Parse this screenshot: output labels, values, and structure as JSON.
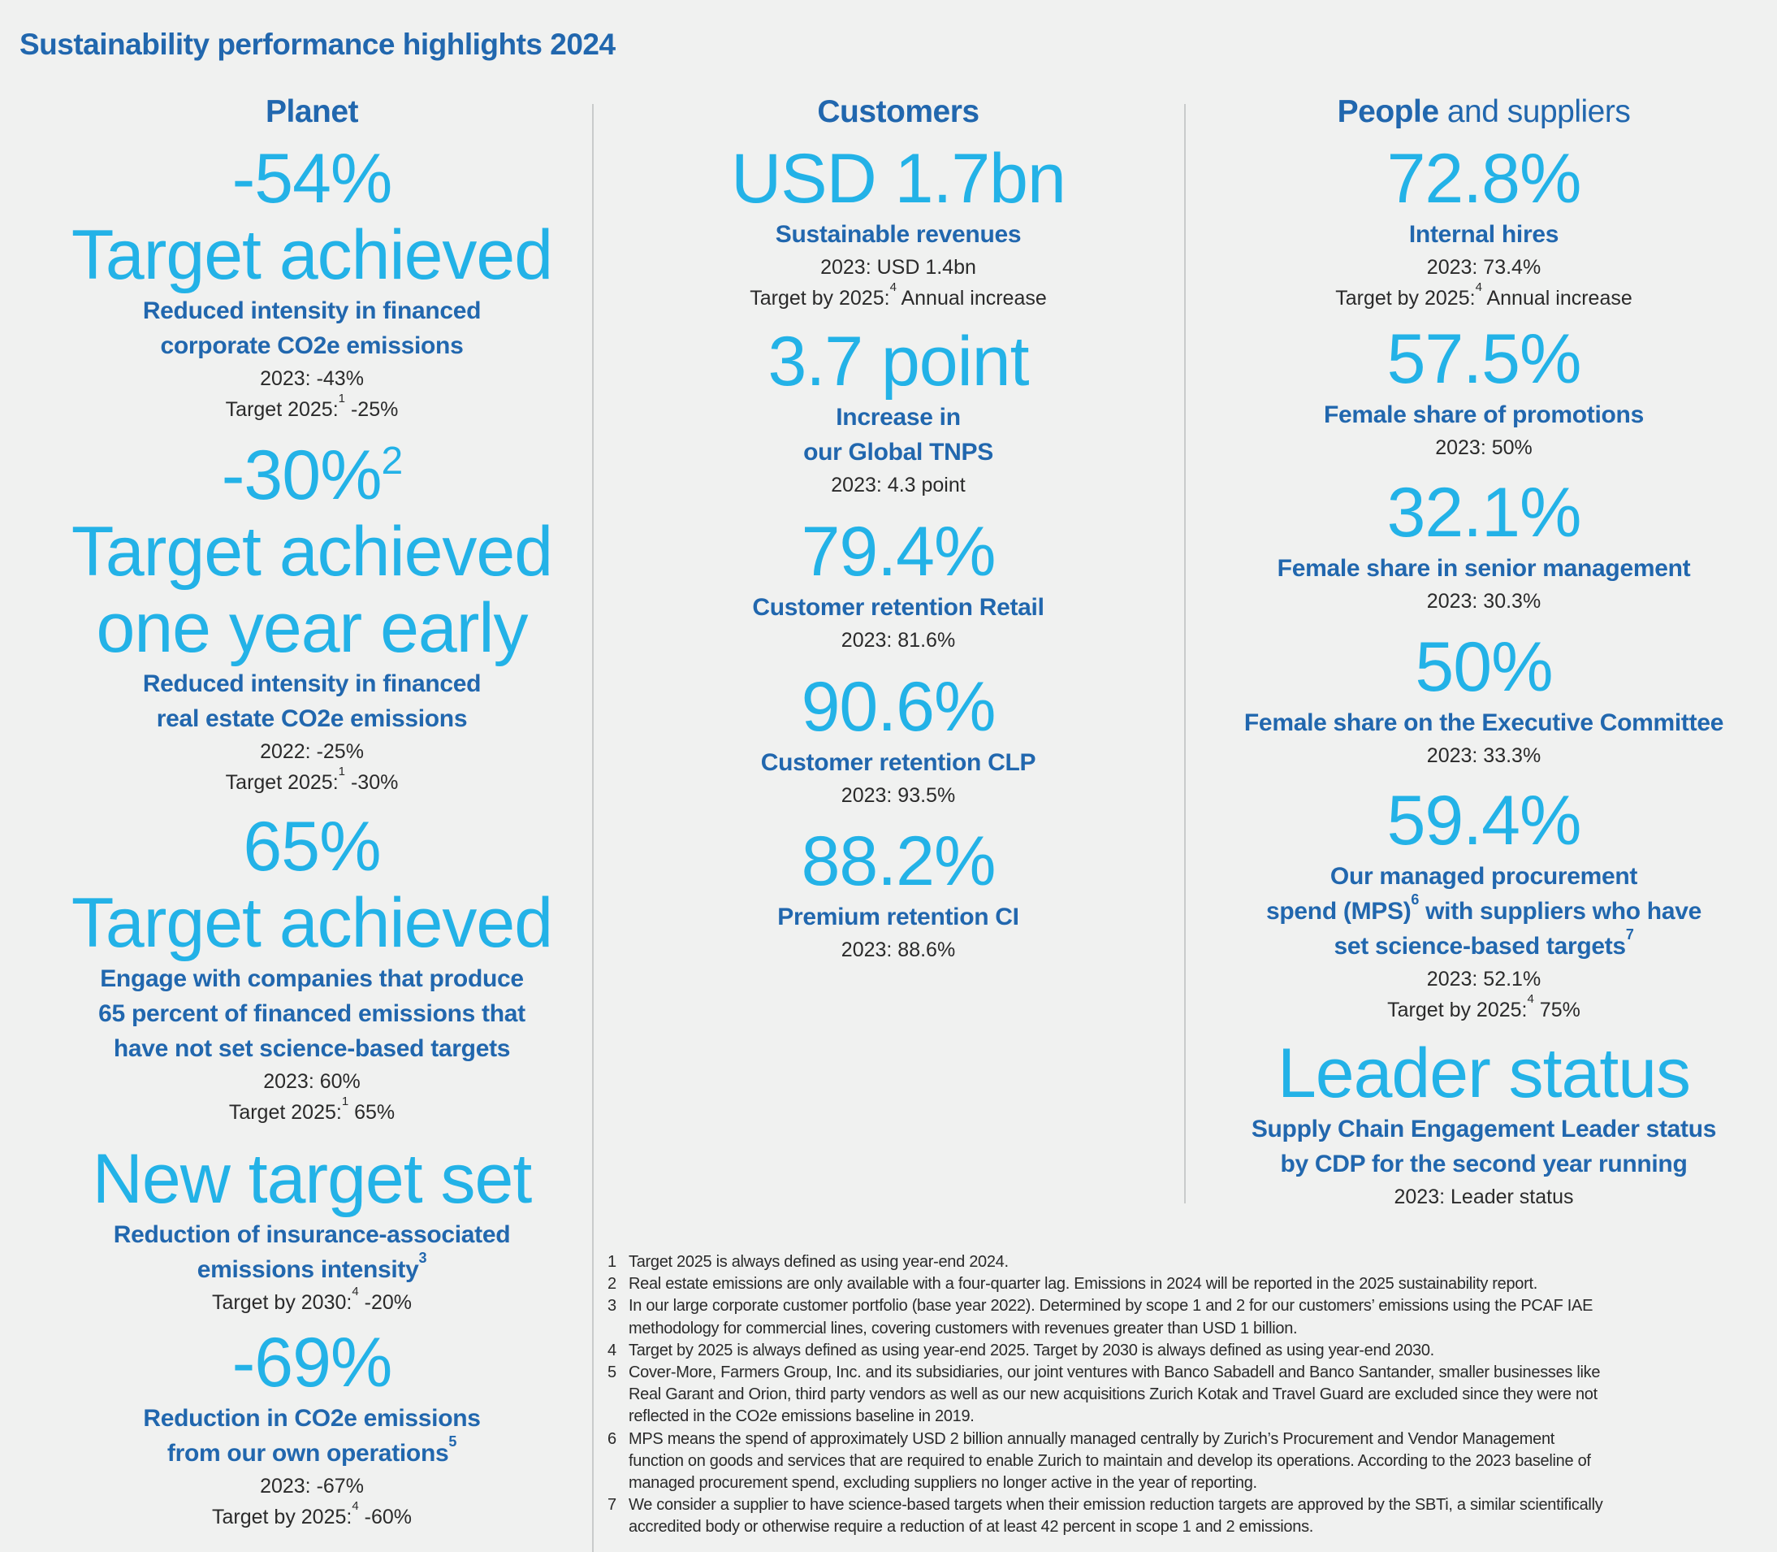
{
  "title": "Sustainability performance highlights 2024",
  "colors": {
    "dark_blue": "#2167ae",
    "light_blue": "#23b2e7",
    "background": "#f0f1f0",
    "text": "#2a2a2a"
  },
  "columns": [
    {
      "header_bold": "Planet",
      "header_rest": "",
      "items": [
        {
          "value": "-54%",
          "value_sup": "",
          "big": [
            "Target achieved"
          ],
          "label": [
            {
              "text": "Reduced intensity in financed"
            },
            {
              "text": "corporate CO2e emissions"
            }
          ],
          "details": [
            {
              "text": "2023: -43%"
            },
            {
              "text": "Target 2025:",
              "sup": "1",
              "after": " -25%"
            }
          ]
        },
        {
          "value": "-30%",
          "value_sup": "2",
          "big": [
            "Target achieved",
            "one year early"
          ],
          "label": [
            {
              "text": "Reduced intensity in financed"
            },
            {
              "text": "real estate CO2e emissions"
            }
          ],
          "details": [
            {
              "text": "2022: -25%"
            },
            {
              "text": "Target 2025:",
              "sup": "1",
              "after": " -30%"
            }
          ]
        },
        {
          "value": "65%",
          "value_sup": "",
          "big": [
            "Target achieved"
          ],
          "label": [
            {
              "text": "Engage with companies that produce"
            },
            {
              "text": "65 percent of financed emissions that"
            },
            {
              "text": "have not set science-based targets"
            }
          ],
          "details": [
            {
              "text": "2023: 60%"
            },
            {
              "text": "Target 2025:",
              "sup": "1",
              "after": " 65%"
            }
          ]
        },
        {
          "value": "",
          "value_sup": "",
          "big": [
            "New target set"
          ],
          "label": [
            {
              "text": "Reduction of insurance-associated"
            },
            {
              "text": "emissions intensity",
              "sup": "3"
            }
          ],
          "details": [
            {
              "text": "Target by 2030:",
              "sup": "4",
              "after": " -20%"
            }
          ]
        },
        {
          "value": "-69%",
          "value_sup": "",
          "big": [],
          "label": [
            {
              "text": "Reduction in CO2e emissions"
            },
            {
              "text": "from our own operations",
              "sup": "5"
            }
          ],
          "details": [
            {
              "text": "2023: -67%"
            },
            {
              "text": "Target by 2025:",
              "sup": "4",
              "after": " -60%"
            }
          ]
        }
      ]
    },
    {
      "header_bold": "Customers",
      "header_rest": "",
      "items": [
        {
          "value": "USD 1.7bn",
          "value_sup": "",
          "big": [],
          "label": [
            {
              "text": "Sustainable revenues"
            }
          ],
          "details": [
            {
              "text": "2023: USD 1.4bn"
            },
            {
              "text": "Target by 2025:",
              "sup": "4",
              "after": " Annual increase"
            }
          ]
        },
        {
          "value": "3.7 point",
          "value_sup": "",
          "big": [],
          "label": [
            {
              "text": "Increase in"
            },
            {
              "text": "our Global TNPS"
            }
          ],
          "details": [
            {
              "text": "2023: 4.3 point"
            }
          ]
        },
        {
          "value": "79.4%",
          "value_sup": "",
          "big": [],
          "label": [
            {
              "text": "Customer retention Retail"
            }
          ],
          "details": [
            {
              "text": "2023: 81.6%"
            }
          ]
        },
        {
          "value": "90.6%",
          "value_sup": "",
          "big": [],
          "label": [
            {
              "text": "Customer retention CLP"
            }
          ],
          "details": [
            {
              "text": "2023: 93.5%"
            }
          ]
        },
        {
          "value": "88.2%",
          "value_sup": "",
          "big": [],
          "label": [
            {
              "text": "Premium retention CI"
            }
          ],
          "details": [
            {
              "text": "2023: 88.6%"
            }
          ]
        }
      ]
    },
    {
      "header_bold": "People",
      "header_rest": " and suppliers",
      "items": [
        {
          "value": "72.8%",
          "value_sup": "",
          "big": [],
          "label": [
            {
              "text": "Internal hires"
            }
          ],
          "details": [
            {
              "text": "2023: 73.4%"
            },
            {
              "text": "Target by 2025:",
              "sup": "4",
              "after": " Annual increase"
            }
          ]
        },
        {
          "value": "57.5%",
          "value_sup": "",
          "big": [],
          "label": [
            {
              "text": "Female share of promotions"
            }
          ],
          "details": [
            {
              "text": "2023: 50%"
            }
          ]
        },
        {
          "value": "32.1%",
          "value_sup": "",
          "big": [],
          "label": [
            {
              "text": "Female share in senior management"
            }
          ],
          "details": [
            {
              "text": "2023: 30.3%"
            }
          ]
        },
        {
          "value": "50%",
          "value_sup": "",
          "big": [],
          "label": [
            {
              "text": "Female share on the Executive Committee"
            }
          ],
          "details": [
            {
              "text": "2023: 33.3%"
            }
          ]
        },
        {
          "value": "59.4%",
          "value_sup": "",
          "big": [],
          "label": [
            {
              "text": "Our managed procurement"
            },
            {
              "text": "spend (MPS)",
              "sup": "6",
              "after": " with suppliers who have"
            },
            {
              "text": "set science-based targets",
              "sup": "7"
            }
          ],
          "details": [
            {
              "text": "2023: 52.1%"
            },
            {
              "text": "Target by 2025:",
              "sup": "4",
              "after": " 75%"
            }
          ]
        },
        {
          "value": "",
          "value_sup": "",
          "big": [
            "Leader status"
          ],
          "label": [
            {
              "text": "Supply Chain Engagement Leader status"
            },
            {
              "text": "by CDP for the second year running"
            }
          ],
          "details": [
            {
              "text": "2023: Leader status"
            }
          ]
        }
      ]
    }
  ],
  "footnotes": [
    {
      "n": "1",
      "lines": [
        "Target 2025 is always defined as using year-end 2024."
      ]
    },
    {
      "n": "2",
      "lines": [
        "Real estate emissions are only available with a four-quarter lag. Emissions in 2024 will be reported in the 2025 sustainability report."
      ]
    },
    {
      "n": "3",
      "lines": [
        "In our large corporate customer portfolio (base year 2022). Determined by scope 1 and 2 for our customers’ emissions using the PCAF IAE",
        "methodology for commercial lines, covering customers with revenues greater than USD 1 billion."
      ]
    },
    {
      "n": "4",
      "lines": [
        "Target by 2025 is always defined as using year-end 2025. Target by 2030 is always defined as using year-end 2030."
      ]
    },
    {
      "n": "5",
      "lines": [
        "Cover-More, Farmers Group, Inc. and its subsidiaries, our joint ventures with Banco Sabadell and Banco Santander, smaller businesses like",
        "Real Garant and Orion, third party vendors as well as our new acquisitions Zurich Kotak and Travel Guard are excluded since they were not",
        "reflected in the CO2e emissions baseline in 2019."
      ]
    },
    {
      "n": "6",
      "lines": [
        "MPS means the spend of approximately USD 2 billion annually managed centrally by Zurich’s Procurement and Vendor Management",
        "function on goods and services that are required to enable Zurich to maintain and develop its operations. According to the 2023 baseline of",
        "managed procurement spend, excluding suppliers no longer active in the year of reporting."
      ]
    },
    {
      "n": "7",
      "lines": [
        "We consider a supplier to have science-based targets when their emission reduction targets are approved by the SBTi, a similar scientifically",
        "accredited body or otherwise require a reduction of at least 42 percent in scope 1 and 2 emissions."
      ]
    }
  ]
}
